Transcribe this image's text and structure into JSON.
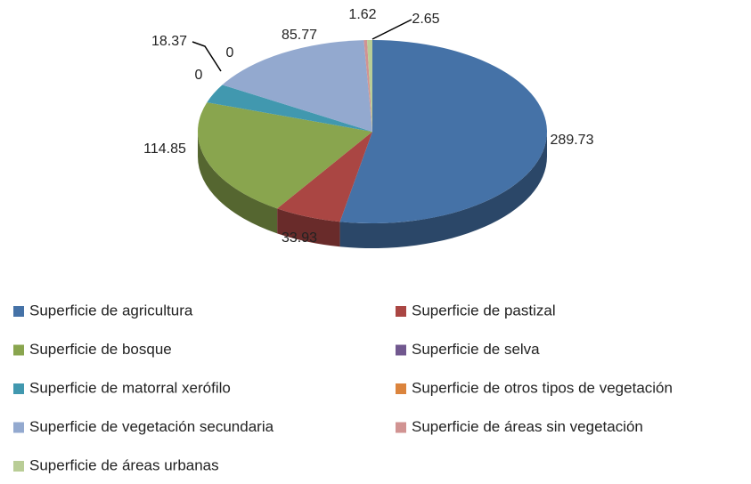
{
  "chart_data": {
    "type": "pie",
    "categories": [
      "Superficie de agricultura",
      "Superficie de pastizal",
      "Superficie de bosque",
      "Superficie de selva",
      "Superficie de matorral xerófilo",
      "Superficie de otros tipos de vegetación",
      "Superficie de vegetación secundaria",
      "Superficie de áreas sin vegetación",
      "Superficie de áreas urbanas"
    ],
    "values": [
      289.73,
      33.93,
      114.85,
      0,
      18.37,
      0,
      85.77,
      1.62,
      2.65
    ],
    "colors": [
      "#4572a7",
      "#aa4643",
      "#89a54e",
      "#71588f",
      "#4198af",
      "#db843d",
      "#93a9cf",
      "#d19392",
      "#b9cd96"
    ],
    "legend": "bottom"
  }
}
